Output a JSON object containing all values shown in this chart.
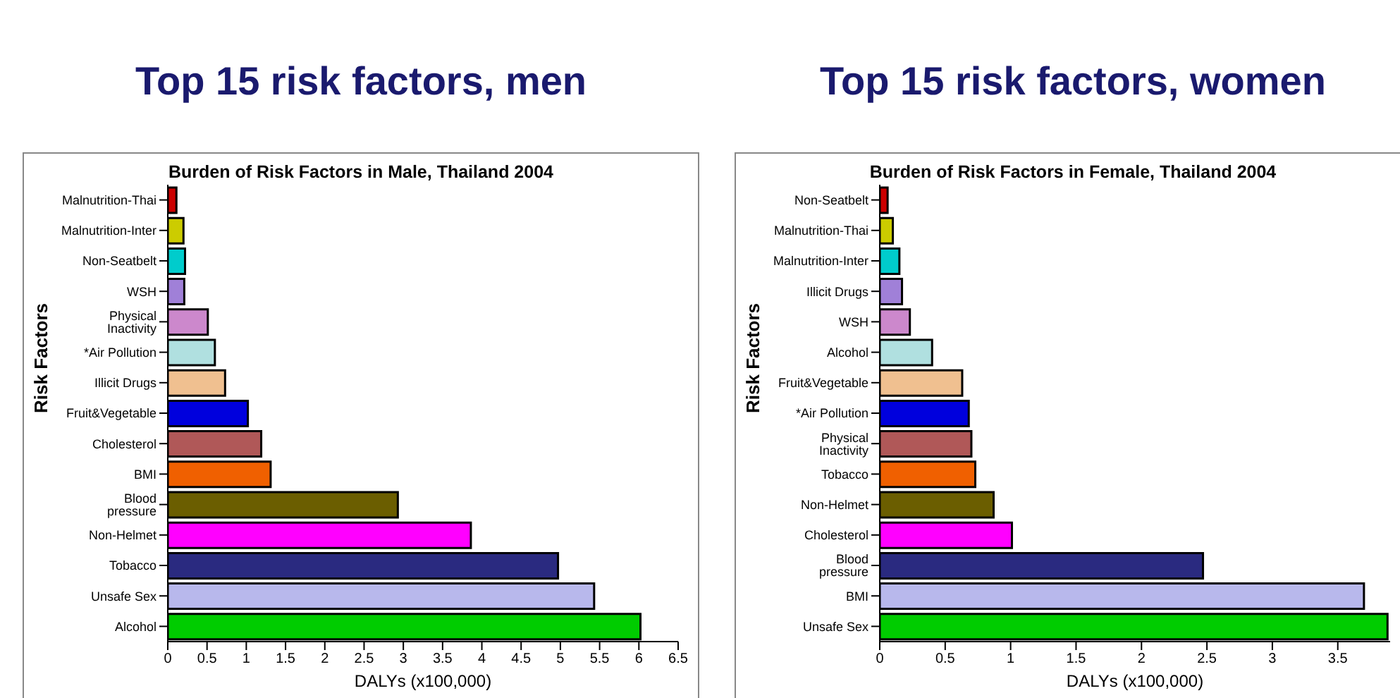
{
  "chart_data": [
    {
      "type": "bar",
      "orientation": "horizontal",
      "title": "Top 15 risk factors, men",
      "subtitle": "Burden of Risk Factors in Male, Thailand 2004",
      "xlabel": "DALYs (x100,000)",
      "ylabel": "Risk Factors",
      "categories": [
        "Malnutrition-Thai",
        "Malnutrition-Inter",
        "Non-Seatbelt",
        "WSH",
        "Physical Inactivity",
        "*Air Pollution",
        "Illicit Drugs",
        "Fruit&Vegetable",
        "Cholesterol",
        "BMI",
        "Blood pressure",
        "Non-Helmet",
        "Tobacco",
        "Unsafe Sex",
        "Alcohol"
      ],
      "values": [
        0.11,
        0.2,
        0.22,
        0.21,
        0.51,
        0.6,
        0.73,
        1.02,
        1.19,
        1.31,
        2.93,
        3.86,
        4.97,
        5.43,
        6.02
      ],
      "colors": [
        "#cc0000",
        "#cccc00",
        "#00cccc",
        "#a080d8",
        "#cc88cc",
        "#b0e0e0",
        "#f0c090",
        "#0000dd",
        "#b05858",
        "#f06000",
        "#6b5e00",
        "#ff00ff",
        "#2a2a80",
        "#b8b8ec",
        "#00cc00"
      ],
      "xlim": [
        0,
        6.5
      ],
      "xticks": [
        0,
        0.5,
        1,
        1.5,
        2,
        2.5,
        3,
        3.5,
        4,
        4.5,
        5,
        5.5,
        6,
        6.5
      ],
      "grid": false,
      "legend": false
    },
    {
      "type": "bar",
      "orientation": "horizontal",
      "title": "Top 15 risk factors, women",
      "subtitle": "Burden of Risk Factors in Female, Thailand 2004",
      "xlabel": "DALYs (x100,000)",
      "ylabel": "Risk Factors",
      "categories": [
        "Non-Seatbelt",
        "Malnutrition-Thai",
        "Malnutrition-Inter",
        "Illicit Drugs",
        "WSH",
        "Alcohol",
        "Fruit&Vegetable",
        "*Air Pollution",
        "Physical Inactivity",
        "Tobacco",
        "Non-Helmet",
        "Cholesterol",
        "Blood pressure",
        "BMI",
        "Unsafe Sex"
      ],
      "values": [
        0.06,
        0.1,
        0.15,
        0.17,
        0.23,
        0.4,
        0.63,
        0.68,
        0.7,
        0.73,
        0.87,
        1.01,
        2.47,
        3.7,
        3.88
      ],
      "colors": [
        "#cc0000",
        "#cccc00",
        "#00cccc",
        "#a080d8",
        "#cc88cc",
        "#b0e0e0",
        "#f0c090",
        "#0000dd",
        "#b05858",
        "#f06000",
        "#6b5e00",
        "#ff00ff",
        "#2a2a80",
        "#b8b8ec",
        "#00cc00"
      ],
      "xlim": [
        0,
        3.9
      ],
      "xticks": [
        0,
        0.5,
        1,
        1.5,
        2,
        2.5,
        3,
        3.5
      ],
      "grid": false,
      "legend": false
    }
  ]
}
